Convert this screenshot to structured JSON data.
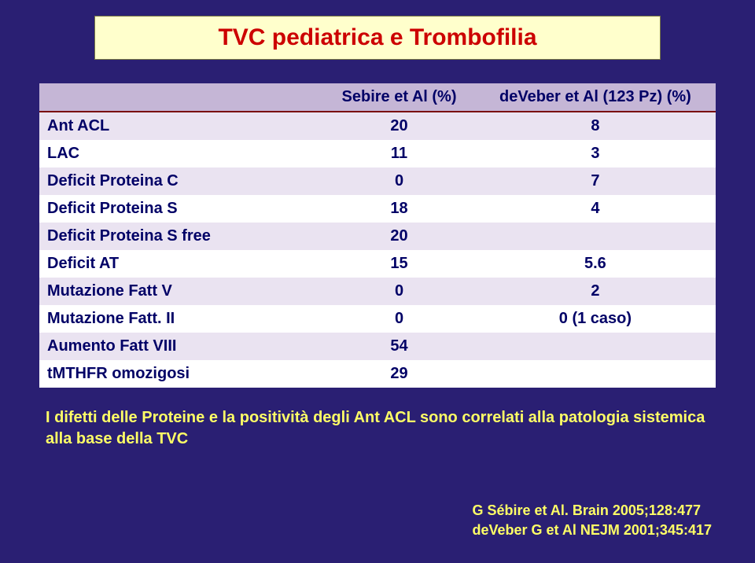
{
  "slide": {
    "background_color": "#2a1f73",
    "title": {
      "text": "TVC pediatrica e Trombofilia",
      "color": "#cc0000",
      "fontsize": 30,
      "box_bg": "#ffffcc",
      "box_border": "#777744"
    },
    "table": {
      "header_row_bg": "#c5b6d6",
      "odd_row_bg": "#eae3f1",
      "even_row_bg": "#ffffff",
      "border_color": "#7a0b0b",
      "text_color": "#000066",
      "fontsize": 20,
      "col_headers": [
        "",
        "Sebire et Al (%)",
        "deVeber et Al (123 Pz) (%)"
      ],
      "rows": [
        {
          "label": "Ant ACL",
          "c1": "20",
          "c2": "8"
        },
        {
          "label": "LAC",
          "c1": "11",
          "c2": "3"
        },
        {
          "label": "Deficit Proteina C",
          "c1": "0",
          "c2": "7"
        },
        {
          "label": "Deficit Proteina S",
          "c1": "18",
          "c2": "4"
        },
        {
          "label": "Deficit Proteina S free",
          "c1": "20",
          "c2": ""
        },
        {
          "label": "Deficit AT",
          "c1": "15",
          "c2": "5.6"
        },
        {
          "label": "Mutazione Fatt V",
          "c1": "0",
          "c2": "2"
        },
        {
          "label": "Mutazione Fatt. II",
          "c1": "0",
          "c2": "0 (1 caso)"
        },
        {
          "label": "Aumento Fatt VIII",
          "c1": "54",
          "c2": ""
        },
        {
          "label": "tMTHFR omozigosi",
          "c1": "29",
          "c2": ""
        }
      ]
    },
    "note": {
      "text": "I difetti delle Proteine e la positività degli Ant ACL sono correlati alla patologia sistemica alla base della TVC",
      "color": "#ffff66",
      "fontsize": 20
    },
    "refs": {
      "line1": "G Sébire et Al. Brain 2005;128:477",
      "line2": "deVeber G et Al NEJM 2001;345:417",
      "color": "#ffff66",
      "fontsize": 18
    }
  }
}
